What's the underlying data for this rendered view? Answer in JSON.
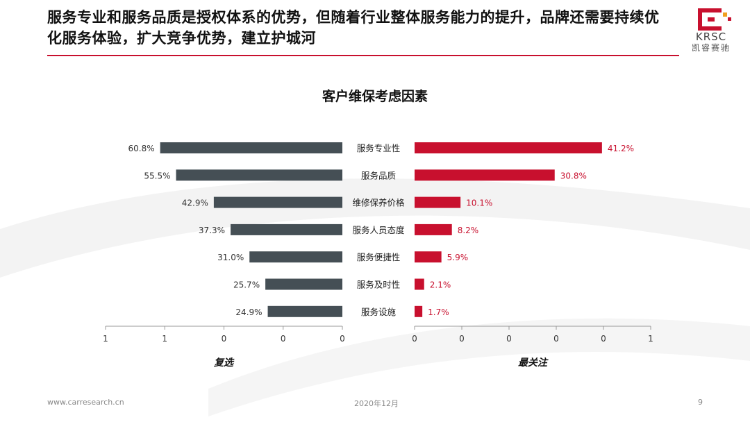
{
  "header": {
    "headline": "服务专业和服务品质是授权体系的优势，但随着行业整体服务能力的提升，品牌还需要持续优化服务体验，扩大竞争优势，建立护城河",
    "logo_text": "KRSC",
    "logo_subtext": "凯睿赛驰"
  },
  "colors": {
    "left_bar": "#454f55",
    "right_bar": "#c8102e",
    "brand_red": "#c8102e"
  },
  "footer": {
    "url": "www.carresearch.cn",
    "date": "2020年12月",
    "page": "9"
  },
  "chart_data": {
    "type": "bar",
    "title": "客户维保考虑因素",
    "categories": [
      "服务专业性",
      "服务品质",
      "维修保养价格",
      "服务人员态度",
      "服务便捷性",
      "服务及时性",
      "服务设施"
    ],
    "series": [
      {
        "name": "复选",
        "values": [
          60.8,
          55.5,
          42.9,
          37.3,
          31.0,
          25.7,
          24.9
        ],
        "labels": [
          "60.8%",
          "55.5%",
          "42.9%",
          "37.3%",
          "31.0%",
          "25.7%",
          "24.9%"
        ],
        "axis_ticks": [
          "1",
          "1",
          "0",
          "0",
          "0"
        ],
        "xlim": [
          0,
          100
        ]
      },
      {
        "name": "最关注",
        "values": [
          41.2,
          30.8,
          10.1,
          8.2,
          5.9,
          2.1,
          1.7
        ],
        "labels": [
          "41.2%",
          "30.8%",
          "10.1%",
          "8.2%",
          "5.9%",
          "2.1%",
          "1.7%"
        ],
        "axis_ticks": [
          "0",
          "0",
          "0",
          "0",
          "0",
          "1"
        ],
        "xlim": [
          0,
          100
        ]
      }
    ],
    "grid": false
  }
}
